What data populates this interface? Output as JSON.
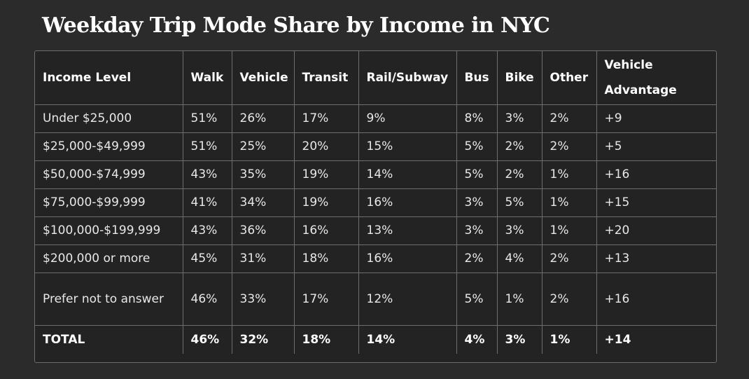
{
  "title": "Weekday Trip Mode Share by Income in NYC",
  "chart_data": {
    "type": "table",
    "title": "Weekday Trip Mode Share by Income in NYC",
    "columns": [
      "Income Level",
      "Walk",
      "Vehicle",
      "Transit",
      "Rail/Subway",
      "Bus",
      "Bike",
      "Other",
      "Vehicle Advantage"
    ],
    "rows": [
      [
        "Under $25,000",
        "51%",
        "26%",
        "17%",
        "9%",
        "8%",
        "3%",
        "2%",
        "+9"
      ],
      [
        "$25,000-$49,999",
        "51%",
        "25%",
        "20%",
        "15%",
        "5%",
        "2%",
        "2%",
        "+5"
      ],
      [
        "$50,000-$74,999",
        "43%",
        "35%",
        "19%",
        "14%",
        "5%",
        "2%",
        "1%",
        "+16"
      ],
      [
        "$75,000-$99,999",
        "41%",
        "34%",
        "19%",
        "16%",
        "3%",
        "5%",
        "1%",
        "+15"
      ],
      [
        "$100,000-$199,999",
        "43%",
        "36%",
        "16%",
        "13%",
        "3%",
        "3%",
        "1%",
        "+20"
      ],
      [
        "$200,000 or more",
        "45%",
        "31%",
        "18%",
        "16%",
        "2%",
        "4%",
        "2%",
        "+13"
      ],
      [
        "Prefer not to answer",
        "46%",
        "33%",
        "17%",
        "12%",
        "5%",
        "1%",
        "2%",
        "+16"
      ]
    ],
    "total": [
      "TOTAL",
      "46%",
      "32%",
      "18%",
      "14%",
      "4%",
      "3%",
      "1%",
      "+14"
    ]
  }
}
